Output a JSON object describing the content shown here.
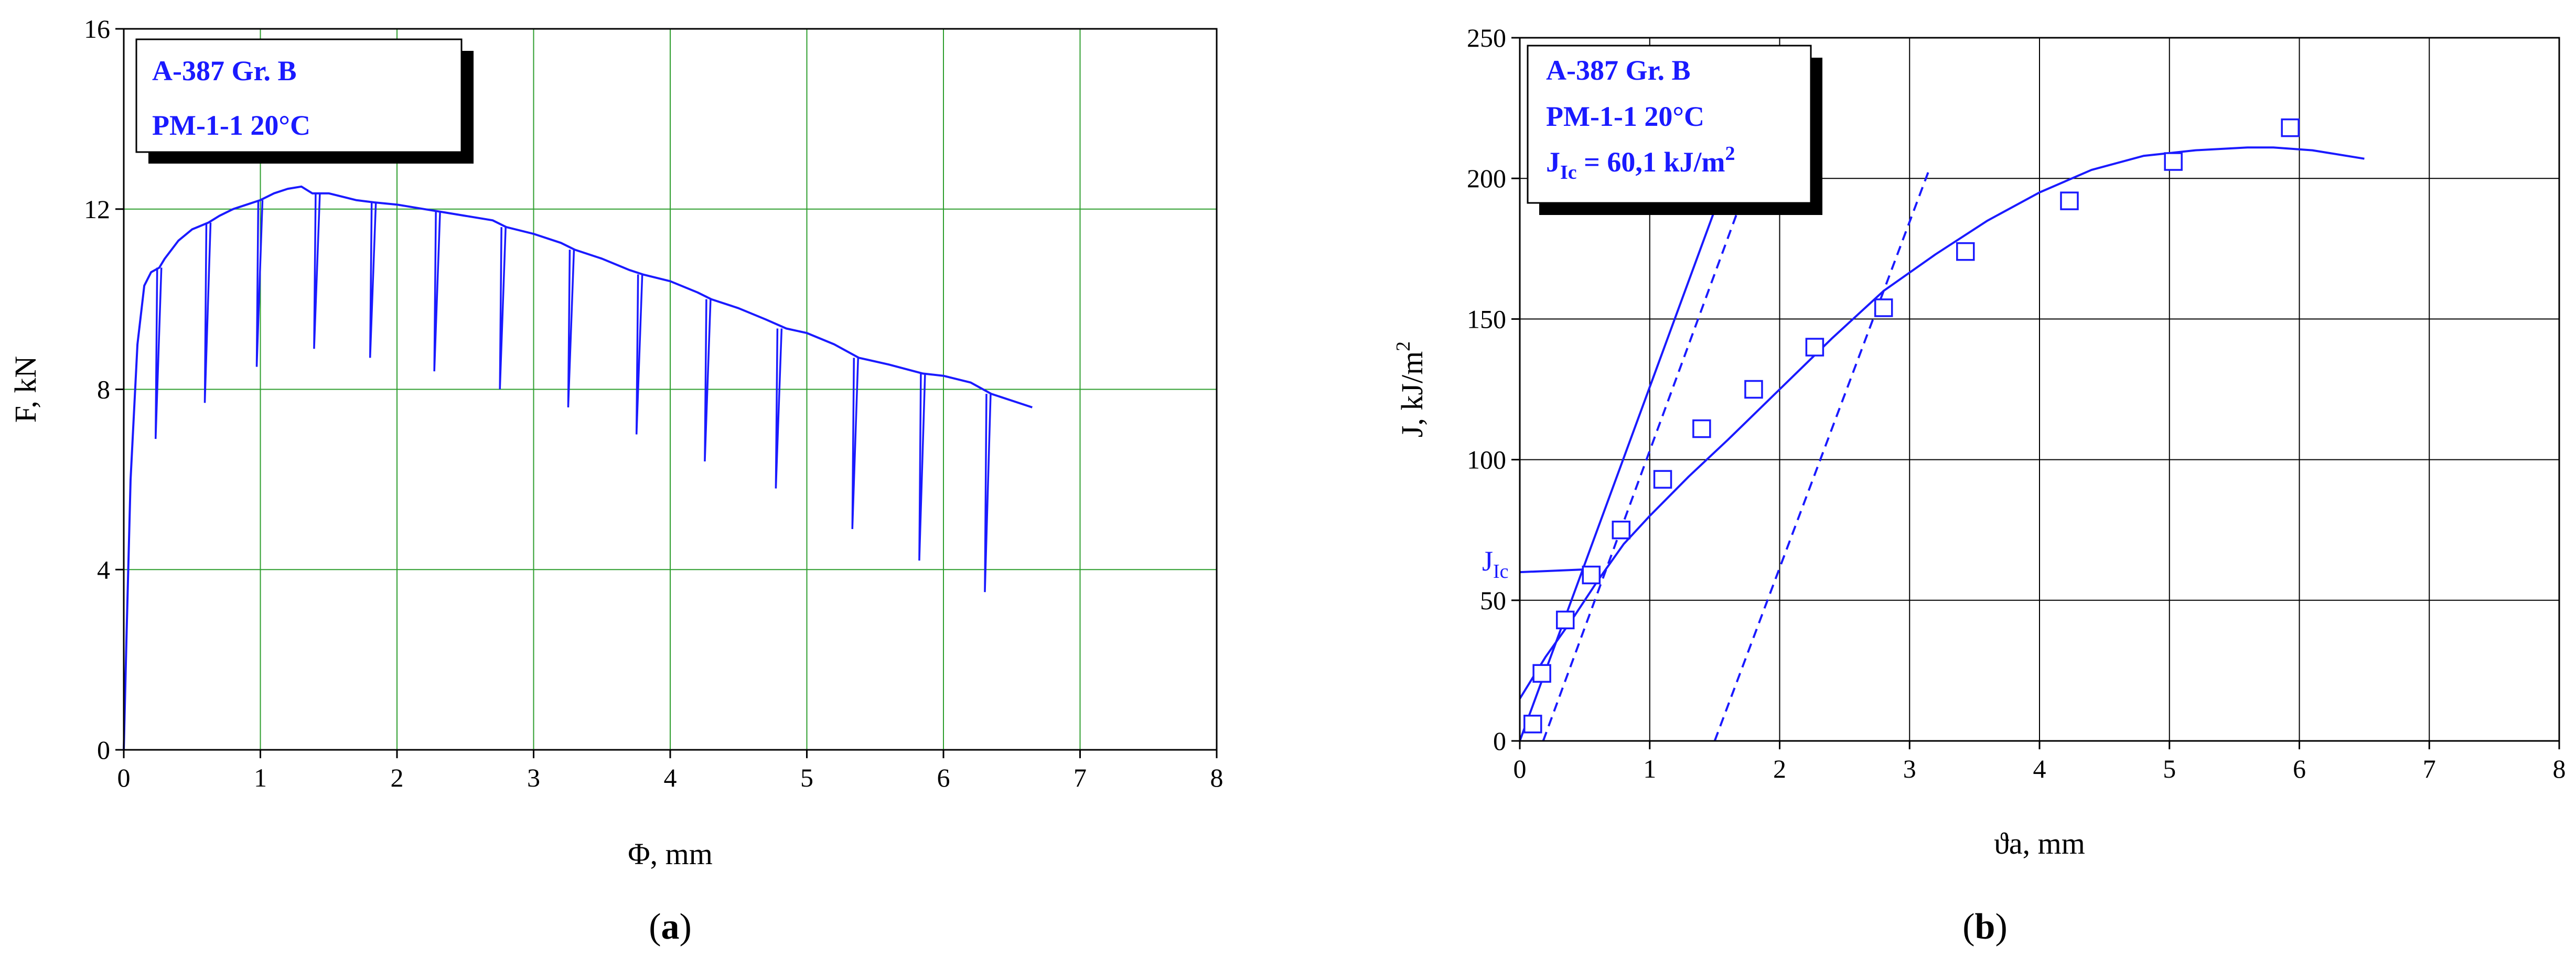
{
  "chart_data": [
    {
      "type": "line",
      "panel_label": "a",
      "xlabel": "Φ, mm",
      "ylabel": "F, kN",
      "xlim": [
        0,
        8
      ],
      "ylim": [
        0,
        16
      ],
      "x_ticks": [
        0,
        1,
        2,
        3,
        4,
        5,
        6,
        7,
        8
      ],
      "y_ticks": [
        0,
        4,
        8,
        12,
        16
      ],
      "grid": true,
      "legend_lines": [
        "A-387 Gr. B",
        "PM-1-1    20°C"
      ],
      "legend_position": "top-left",
      "colors": {
        "series": "#1a1aff",
        "grid": "#2e9e2e",
        "axis": "#000000"
      },
      "series": [
        {
          "x": [
            0.0,
            0.02,
            0.05,
            0.1,
            0.15,
            0.2,
            0.26,
            0.3,
            0.4,
            0.5,
            0.62,
            0.7,
            0.8,
            0.9,
            1.0,
            1.1,
            1.2,
            1.3,
            1.38,
            1.5,
            1.7,
            1.83,
            2.0,
            2.2,
            2.3,
            2.5,
            2.7,
            2.8,
            3.0,
            3.2,
            3.3,
            3.5,
            3.7,
            3.8,
            4.0,
            4.2,
            4.3,
            4.5,
            4.7,
            4.85,
            5.0,
            5.2,
            5.38,
            5.6,
            5.85,
            6.0,
            6.2,
            6.35,
            6.5,
            6.65
          ],
          "y": [
            0.0,
            2.5,
            6.0,
            9.0,
            10.3,
            10.6,
            10.7,
            10.9,
            11.3,
            11.55,
            11.7,
            11.85,
            12.0,
            12.1,
            12.2,
            12.35,
            12.45,
            12.5,
            12.35,
            12.35,
            12.2,
            12.15,
            12.1,
            12.0,
            11.95,
            11.85,
            11.75,
            11.6,
            11.45,
            11.25,
            11.1,
            10.9,
            10.65,
            10.55,
            10.4,
            10.15,
            10.0,
            9.8,
            9.55,
            9.35,
            9.25,
            9.0,
            8.7,
            8.55,
            8.35,
            8.3,
            8.15,
            7.9,
            7.75,
            7.6
          ],
          "unloadings": [
            {
              "x": 0.26,
              "y_from": 10.7,
              "y_to": 6.9
            },
            {
              "x": 0.62,
              "y_from": 11.7,
              "y_to": 7.7
            },
            {
              "x": 1.0,
              "y_from": 12.2,
              "y_to": 8.5
            },
            {
              "x": 1.42,
              "y_from": 12.35,
              "y_to": 8.9
            },
            {
              "x": 1.83,
              "y_from": 12.15,
              "y_to": 8.7
            },
            {
              "x": 2.3,
              "y_from": 11.95,
              "y_to": 8.4
            },
            {
              "x": 2.78,
              "y_from": 11.6,
              "y_to": 8.0
            },
            {
              "x": 3.28,
              "y_from": 11.1,
              "y_to": 7.6
            },
            {
              "x": 3.78,
              "y_from": 10.55,
              "y_to": 7.0
            },
            {
              "x": 4.28,
              "y_from": 10.0,
              "y_to": 6.4
            },
            {
              "x": 4.8,
              "y_from": 9.35,
              "y_to": 5.8
            },
            {
              "x": 5.36,
              "y_from": 8.7,
              "y_to": 4.9
            },
            {
              "x": 5.85,
              "y_from": 8.35,
              "y_to": 4.2
            },
            {
              "x": 6.33,
              "y_from": 7.9,
              "y_to": 3.5
            }
          ]
        }
      ]
    },
    {
      "type": "scatter",
      "panel_label": "b",
      "xlabel": "ϑa,  mm",
      "ylabel": "J,  kJ/m²",
      "xlim": [
        0,
        8
      ],
      "ylim": [
        0,
        250
      ],
      "x_ticks": [
        0,
        1,
        2,
        3,
        4,
        5,
        6,
        7,
        8
      ],
      "y_ticks": [
        0,
        50,
        100,
        150,
        200,
        250
      ],
      "grid": true,
      "legend_lines": [
        "A-387 Gr. B",
        "PM-1-1    20°C",
        "J_Ic = 60,1 kJ/m²"
      ],
      "legend_position": "top-left",
      "annotation": "J_Ic",
      "colors": {
        "series": "#1a1aff",
        "grid": "#000000",
        "axis": "#000000"
      },
      "points": {
        "x": [
          0.1,
          0.17,
          0.35,
          0.55,
          0.78,
          1.1,
          1.4,
          1.8,
          2.27,
          2.8,
          3.43,
          4.23,
          5.03,
          5.93
        ],
        "y": [
          6,
          24,
          43,
          59,
          75,
          93,
          111,
          125,
          140,
          154,
          174,
          192,
          206,
          218
        ]
      },
      "fit_curve": {
        "x": [
          0.0,
          0.2,
          0.4,
          0.6,
          0.8,
          1.0,
          1.3,
          1.6,
          2.0,
          2.4,
          2.8,
          3.2,
          3.6,
          4.0,
          4.4,
          4.8,
          5.2,
          5.6,
          5.8,
          6.1,
          6.5
        ],
        "y": [
          15,
          30,
          43,
          57,
          70,
          80,
          94,
          107,
          125,
          143,
          160,
          173,
          185,
          195,
          203,
          208,
          210,
          211,
          211,
          210,
          207
        ]
      },
      "blunting_line": {
        "x": [
          0.0,
          1.55
        ],
        "y": [
          0,
          195
        ]
      },
      "offset_line_1": {
        "x": [
          0.18,
          1.73
        ],
        "y": [
          0,
          195
        ]
      },
      "offset_line_2": {
        "x": [
          1.5,
          3.15
        ],
        "y": [
          0,
          203
        ]
      },
      "jic_line": {
        "x": [
          0.0,
          0.52
        ],
        "y": [
          60,
          61
        ]
      }
    }
  ]
}
